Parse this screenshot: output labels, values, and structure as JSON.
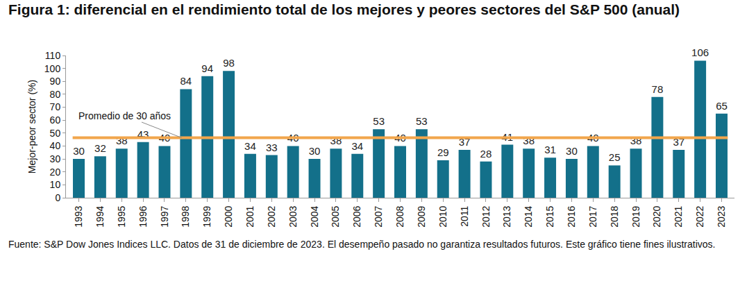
{
  "chart_data": {
    "type": "bar",
    "title": "Figura 1: diferencial en el rendimiento total de los mejores y peores sectores del S&P 500 (anual)",
    "y_label": "Mejor-peor sector (%)",
    "categories": [
      "1993",
      "1994",
      "1995",
      "1996",
      "1997",
      "1998",
      "1999",
      "2000",
      "2001",
      "2002",
      "2003",
      "2004",
      "2005",
      "2006",
      "2007",
      "2008",
      "2009",
      "2010",
      "2011",
      "2012",
      "2013",
      "2014",
      "2015",
      "2016",
      "2017",
      "2018",
      "2019",
      "2020",
      "2021",
      "2022",
      "2023"
    ],
    "values": [
      30,
      32,
      38,
      43,
      40,
      84,
      94,
      98,
      34,
      33,
      40,
      30,
      38,
      34,
      53,
      40,
      53,
      29,
      37,
      28,
      41,
      38,
      31,
      30,
      40,
      25,
      38,
      78,
      37,
      106,
      65
    ],
    "color": "#13708a",
    "ylim": [
      0,
      110
    ],
    "yticks": [
      0,
      10,
      20,
      30,
      40,
      50,
      60,
      70,
      80,
      90,
      100,
      110
    ],
    "grid": false,
    "data_labels": true,
    "reference_line": {
      "label": "Promedio de 30 años",
      "value": 46.4,
      "color": "#f2a64c"
    },
    "note": "Fuente: S&P Dow Jones Indices LLC. Datos de 31 de diciembre de 2023. El desempeño pasado no garantiza resultados futuros. Este gráfico tiene fines ilustrativos."
  }
}
